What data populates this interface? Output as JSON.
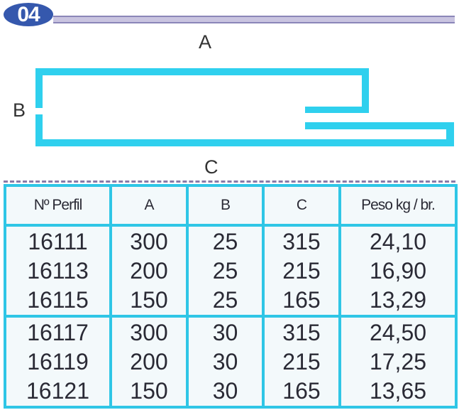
{
  "section_number": "04",
  "profile_labels": {
    "a": "A",
    "b": "B",
    "c": "C"
  },
  "colors": {
    "profile": "#2fd0ee",
    "badge": "#3558ad",
    "table_border": "#2fc6e6"
  },
  "table": {
    "headers": [
      "Nº Perfil",
      "A",
      "B",
      "C",
      "Peso kg / br."
    ],
    "rows": [
      [
        "16111",
        "300",
        "25",
        "315",
        "24,10"
      ],
      [
        "16113",
        "200",
        "25",
        "215",
        "16,90"
      ],
      [
        "16115",
        "150",
        "25",
        "165",
        "13,29"
      ],
      [
        "16117",
        "300",
        "30",
        "315",
        "24,50"
      ],
      [
        "16119",
        "200",
        "30",
        "215",
        "17,25"
      ],
      [
        "16121",
        "150",
        "30",
        "165",
        "13,65"
      ]
    ]
  }
}
